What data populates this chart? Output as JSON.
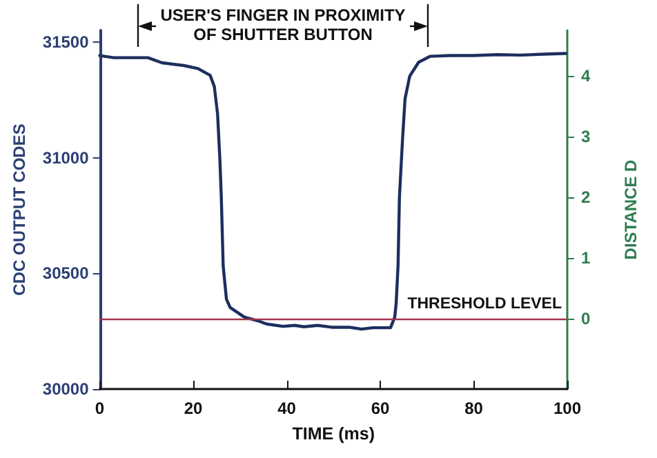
{
  "chart_data": {
    "type": "line",
    "xlabel": "TIME (ms)",
    "ylabel": "CDC OUTPUT CODES",
    "y2label": "DISTANCE D",
    "xlim": [
      0,
      100
    ],
    "xticks": [
      0,
      20,
      40,
      60,
      80,
      100
    ],
    "ylim": [
      30000,
      31550
    ],
    "yticks": [
      30000,
      30500,
      31000,
      31500
    ],
    "y2lim": [
      -1.16,
      4.75
    ],
    "y2ticks": [
      0,
      1,
      2,
      3,
      4
    ],
    "series": [
      {
        "color": "#1c2f5e",
        "x": [
          0,
          3,
          10.3,
          13.3,
          18,
          21,
          23.6,
          24.5,
          25.2,
          25.7,
          26,
          26.4,
          27.1,
          27.9,
          30.9,
          33.8,
          35.7,
          39.2,
          41.7,
          43.7,
          46.6,
          49.6,
          53.4,
          56,
          58.4,
          62.2,
          63.1,
          63.4,
          63.8,
          64.1,
          64.8,
          65.3,
          66.3,
          68.2,
          70.7,
          75,
          80,
          85,
          90,
          95,
          99.7
        ],
        "values": [
          31441,
          31432,
          31432,
          31410,
          31398,
          31385,
          31356,
          31308,
          31189,
          30990,
          30830,
          30532,
          30388,
          30352,
          30311,
          30295,
          30281,
          30271,
          30275,
          30269,
          30275,
          30267,
          30267,
          30259,
          30265,
          30265,
          30311,
          30371,
          30532,
          30830,
          31093,
          31254,
          31352,
          31412,
          31438,
          31441,
          31441,
          31445,
          31443,
          31447,
          31450
        ]
      }
    ],
    "ref_lines": [
      {
        "axis": "y",
        "value": 30300,
        "label": "THRESHOLD LEVEL",
        "color": "#a0344e"
      }
    ],
    "annotations": [
      "USER'S FINGER IN PROXIMITY\nOF SHUTTER BUTTON"
    ],
    "grid": false,
    "marker": "none",
    "line_style": "solid"
  }
}
